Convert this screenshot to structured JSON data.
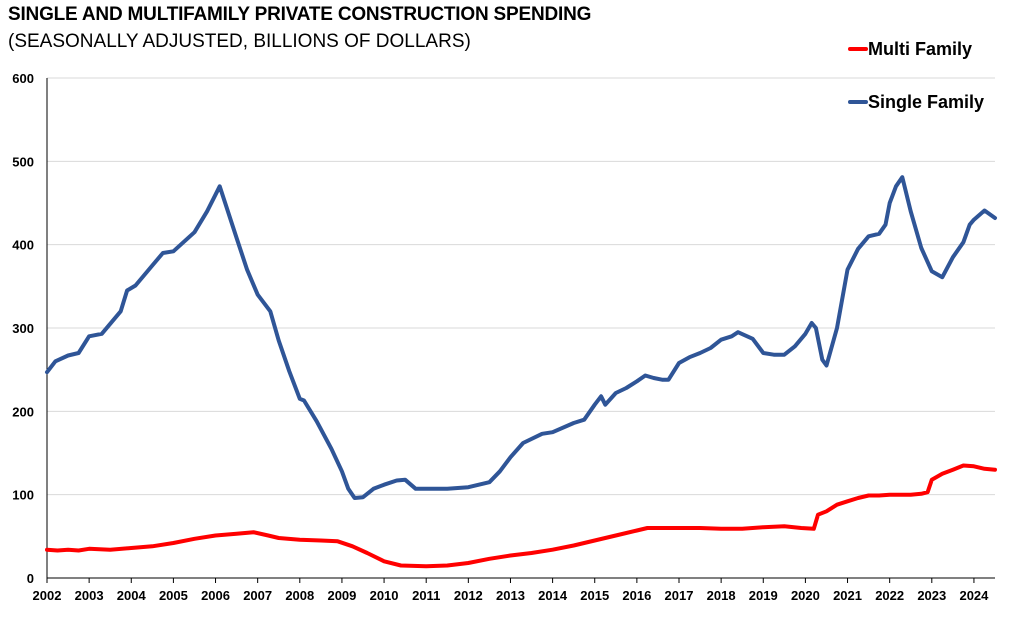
{
  "chart_data": {
    "type": "line",
    "title": "SINGLE AND MULTIFAMILY PRIVATE CONSTRUCTION SPENDING",
    "subtitle": "(SEASONALLY ADJUSTED, BILLIONS OF DOLLARS)",
    "xlabel": "",
    "ylabel": "",
    "xlim": [
      2002,
      2024.5
    ],
    "ylim": [
      0,
      600
    ],
    "yticks": [
      0,
      100,
      200,
      300,
      400,
      500,
      600
    ],
    "xticks": [
      2002,
      2003,
      2004,
      2005,
      2006,
      2007,
      2008,
      2009,
      2010,
      2011,
      2012,
      2013,
      2014,
      2015,
      2016,
      2017,
      2018,
      2019,
      2020,
      2021,
      2022,
      2023,
      2024
    ],
    "grid": "horizontal",
    "legend": "top-right",
    "series": [
      {
        "name": "Multi Family",
        "color": "#ff0000",
        "x": [
          2002.0,
          2002.25,
          2002.5,
          2002.75,
          2003.0,
          2003.5,
          2004.0,
          2004.5,
          2005.0,
          2005.5,
          2006.0,
          2006.5,
          2006.9,
          2007.25,
          2007.5,
          2008.0,
          2008.5,
          2008.9,
          2009.25,
          2009.6,
          2010.0,
          2010.4,
          2011.0,
          2011.5,
          2012.0,
          2012.5,
          2013.0,
          2013.5,
          2014.0,
          2014.5,
          2015.0,
          2015.5,
          2016.0,
          2016.25,
          2016.5,
          2017.0,
          2017.5,
          2018.0,
          2018.5,
          2019.0,
          2019.5,
          2019.9,
          2020.2,
          2020.3,
          2020.5,
          2020.75,
          2021.0,
          2021.25,
          2021.5,
          2021.75,
          2022.0,
          2022.25,
          2022.5,
          2022.75,
          2022.9,
          2023.0,
          2023.25,
          2023.5,
          2023.75,
          2024.0,
          2024.25,
          2024.5
        ],
        "values": [
          34,
          33,
          34,
          33,
          35,
          34,
          36,
          38,
          42,
          47,
          51,
          53,
          55,
          51,
          48,
          46,
          45,
          44,
          38,
          30,
          20,
          15,
          14,
          15,
          18,
          23,
          27,
          30,
          34,
          39,
          45,
          51,
          57,
          60,
          60,
          60,
          60,
          59,
          59,
          61,
          62,
          60,
          59,
          76,
          80,
          88,
          92,
          96,
          99,
          99,
          100,
          100,
          100,
          101,
          103,
          118,
          125,
          130,
          135,
          134,
          131,
          130
        ]
      },
      {
        "name": "Single Family",
        "color": "#2f5597",
        "x": [
          2002.0,
          2002.2,
          2002.5,
          2002.75,
          2003.0,
          2003.3,
          2003.75,
          2003.9,
          2004.1,
          2004.5,
          2004.75,
          2005.0,
          2005.5,
          2005.8,
          2006.0,
          2006.1,
          2006.5,
          2006.75,
          2007.0,
          2007.3,
          2007.5,
          2007.75,
          2008.0,
          2008.1,
          2008.4,
          2008.75,
          2009.0,
          2009.15,
          2009.3,
          2009.5,
          2009.75,
          2010.0,
          2010.3,
          2010.5,
          2010.75,
          2011.0,
          2011.5,
          2012.0,
          2012.5,
          2012.75,
          2013.0,
          2013.3,
          2013.75,
          2014.0,
          2014.5,
          2014.75,
          2015.0,
          2015.15,
          2015.25,
          2015.5,
          2015.75,
          2016.0,
          2016.2,
          2016.4,
          2016.6,
          2016.75,
          2017.0,
          2017.25,
          2017.5,
          2017.75,
          2018.0,
          2018.25,
          2018.4,
          2018.75,
          2019.0,
          2019.25,
          2019.5,
          2019.75,
          2020.0,
          2020.15,
          2020.25,
          2020.4,
          2020.5,
          2020.75,
          2021.0,
          2021.25,
          2021.5,
          2021.75,
          2021.9,
          2022.0,
          2022.15,
          2022.3,
          2022.5,
          2022.75,
          2023.0,
          2023.25,
          2023.5,
          2023.75,
          2023.9,
          2024.0,
          2024.25,
          2024.5
        ],
        "values": [
          247,
          260,
          267,
          270,
          290,
          293,
          320,
          345,
          351,
          375,
          390,
          392,
          415,
          440,
          460,
          470,
          408,
          370,
          340,
          320,
          285,
          248,
          215,
          213,
          188,
          155,
          128,
          107,
          96,
          97,
          107,
          112,
          117,
          118,
          107,
          107,
          107,
          109,
          115,
          128,
          145,
          162,
          173,
          175,
          186,
          190,
          208,
          218,
          208,
          222,
          228,
          236,
          243,
          240,
          238,
          238,
          258,
          265,
          270,
          276,
          286,
          290,
          295,
          287,
          270,
          268,
          268,
          278,
          293,
          306,
          300,
          262,
          255,
          300,
          370,
          395,
          410,
          413,
          424,
          450,
          470,
          481,
          440,
          396,
          368,
          361,
          385,
          403,
          424,
          430,
          441,
          432
        ]
      }
    ]
  }
}
